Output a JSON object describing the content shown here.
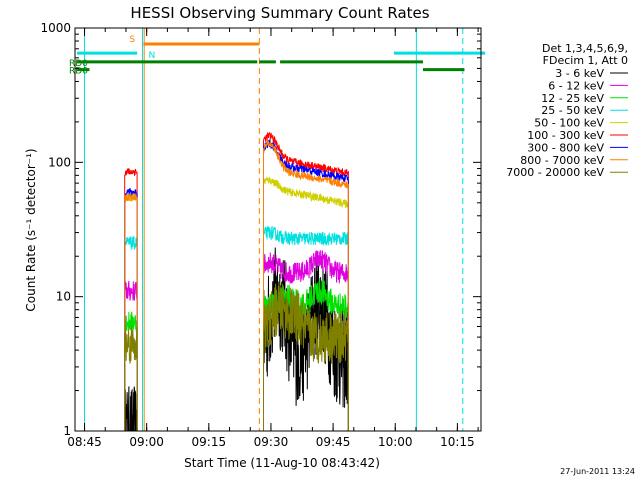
{
  "chart_data": {
    "type": "line",
    "title": "HESSI Observing Summary Count Rates",
    "xlabel": "Start Time (11-Aug-10 08:43:42)",
    "ylabel": "Count Rate (s⁻¹ detector⁻¹)",
    "y_scale": "log",
    "ylim": [
      1,
      1000
    ],
    "xlim_minutes": [
      -1,
      97
    ],
    "x_tick_labels": [
      "08:45",
      "09:00",
      "09:15",
      "09:30",
      "09:45",
      "10:00",
      "10:15"
    ],
    "x_tick_minutes": [
      1.3,
      16.3,
      31.3,
      46.3,
      61.3,
      76.3,
      91.3
    ],
    "y_tick_labels": [
      "1",
      "10",
      "100",
      "1000"
    ],
    "y_tick_values": [
      1,
      10,
      100,
      1000
    ],
    "legend_header": [
      "Det 1,3,4,5,6,9,",
      "FDecim 1, Att 0"
    ],
    "series": [
      {
        "name": "3 - 6 keV",
        "color": "#000000",
        "segments": [
          {
            "start": 11.0,
            "end": 14.0,
            "base": 1.1,
            "noise": 0.3
          },
          {
            "start": 44.5,
            "end": 65.0,
            "base": 3.5,
            "noise": 0.4,
            "bump": [
              [
                48,
                10
              ],
              [
                58,
                9
              ]
            ]
          }
        ]
      },
      {
        "name": "6 - 12 keV",
        "color": "#e000e0",
        "segments": [
          {
            "start": 11.0,
            "end": 14.0,
            "base": 11,
            "noise": 0.08
          },
          {
            "start": 44.5,
            "end": 65.0,
            "base": 15,
            "noise": 0.08,
            "bump": [
              [
                46,
                18
              ],
              [
                58,
                19
              ]
            ]
          }
        ]
      },
      {
        "name": "12 - 25 keV",
        "color": "#00e000",
        "segments": [
          {
            "start": 11.0,
            "end": 14.0,
            "base": 6.5,
            "noise": 0.08
          },
          {
            "start": 44.5,
            "end": 65.0,
            "base": 8.5,
            "noise": 0.1,
            "bump": [
              [
                50,
                10
              ],
              [
                58,
                11
              ]
            ]
          }
        ]
      },
      {
        "name": "25 - 50 keV",
        "color": "#00e0e0",
        "segments": [
          {
            "start": 11.0,
            "end": 14.0,
            "base": 25,
            "noise": 0.05
          },
          {
            "start": 44.5,
            "end": 65.0,
            "base": 27,
            "noise": 0.05,
            "bump": [
              [
                46,
                30
              ]
            ]
          }
        ]
      },
      {
        "name": "50 - 100 keV",
        "color": "#d0d000",
        "segments": [
          {
            "start": 11.0,
            "end": 14.0,
            "base": 55,
            "noise": 0.03
          },
          {
            "start": 44.5,
            "end": 65.0,
            "base": 65,
            "noise": 0.03,
            "bump": [
              [
                46,
                75
              ]
            ]
          }
        ]
      },
      {
        "name": "100 - 300 keV",
        "color": "#ff0000",
        "segments": [
          {
            "start": 11.0,
            "end": 14.0,
            "base": 85,
            "noise": 0.03
          },
          {
            "start": 44.5,
            "end": 65.0,
            "base": 110,
            "noise": 0.03,
            "bump": [
              [
                46,
                160
              ]
            ]
          }
        ]
      },
      {
        "name": "300 - 800 keV",
        "color": "#0000ff",
        "segments": [
          {
            "start": 11.0,
            "end": 14.0,
            "base": 60,
            "noise": 0.03
          },
          {
            "start": 44.5,
            "end": 65.0,
            "base": 100,
            "noise": 0.03,
            "bump": [
              [
                46,
                140
              ]
            ]
          }
        ]
      },
      {
        "name": "800 - 7000 keV",
        "color": "#ff8000",
        "segments": [
          {
            "start": 11.0,
            "end": 14.0,
            "base": 55,
            "noise": 0.03
          },
          {
            "start": 44.5,
            "end": 65.0,
            "base": 90,
            "noise": 0.03,
            "bump": [
              [
                46,
                140
              ]
            ]
          }
        ]
      },
      {
        "name": "7000 - 20000 keV",
        "color": "#808000",
        "segments": [
          {
            "start": 11.0,
            "end": 14.0,
            "base": 4.5,
            "noise": 0.15
          },
          {
            "start": 44.5,
            "end": 65.0,
            "base": 5,
            "noise": 0.2,
            "bump": [
              [
                48,
                8
              ],
              [
                52,
                7
              ]
            ]
          }
        ]
      }
    ],
    "flag_bars": [
      {
        "label": "S",
        "color": "#ff8000",
        "y_value": 760,
        "ranges": [
          [
            15.5,
            43.5
          ]
        ]
      },
      {
        "label": "N",
        "color": "#00e0e0",
        "y_value": 650,
        "ranges": [
          [
            -0.5,
            14.0
          ],
          [
            76.0,
            98.0
          ]
        ]
      },
      {
        "label": "RD0",
        "color": "#008000",
        "y_value": 560,
        "ranges": [
          [
            -0.5,
            43.0
          ],
          [
            43.5,
            47.5
          ],
          [
            48.5,
            83.0
          ]
        ]
      },
      {
        "label": "RD6",
        "color": "#008000",
        "y_value": 490,
        "ranges": [
          [
            -0.5,
            2.5
          ],
          [
            83.0,
            93.0
          ]
        ]
      }
    ],
    "vertical_markers": [
      {
        "minute": 1.3,
        "color": "#00e0e0",
        "style": "solid"
      },
      {
        "minute": 15.3,
        "color": "#00e0e0",
        "style": "solid"
      },
      {
        "minute": 15.7,
        "color": "#ff8000",
        "style": "solid"
      },
      {
        "minute": 43.5,
        "color": "#ff8000",
        "style": "dashed"
      },
      {
        "minute": 81.4,
        "color": "#00e0e0",
        "style": "solid"
      },
      {
        "minute": 92.6,
        "color": "#00e0e0",
        "style": "dashed"
      }
    ],
    "footer": "27-Jun-2011 13:24"
  }
}
